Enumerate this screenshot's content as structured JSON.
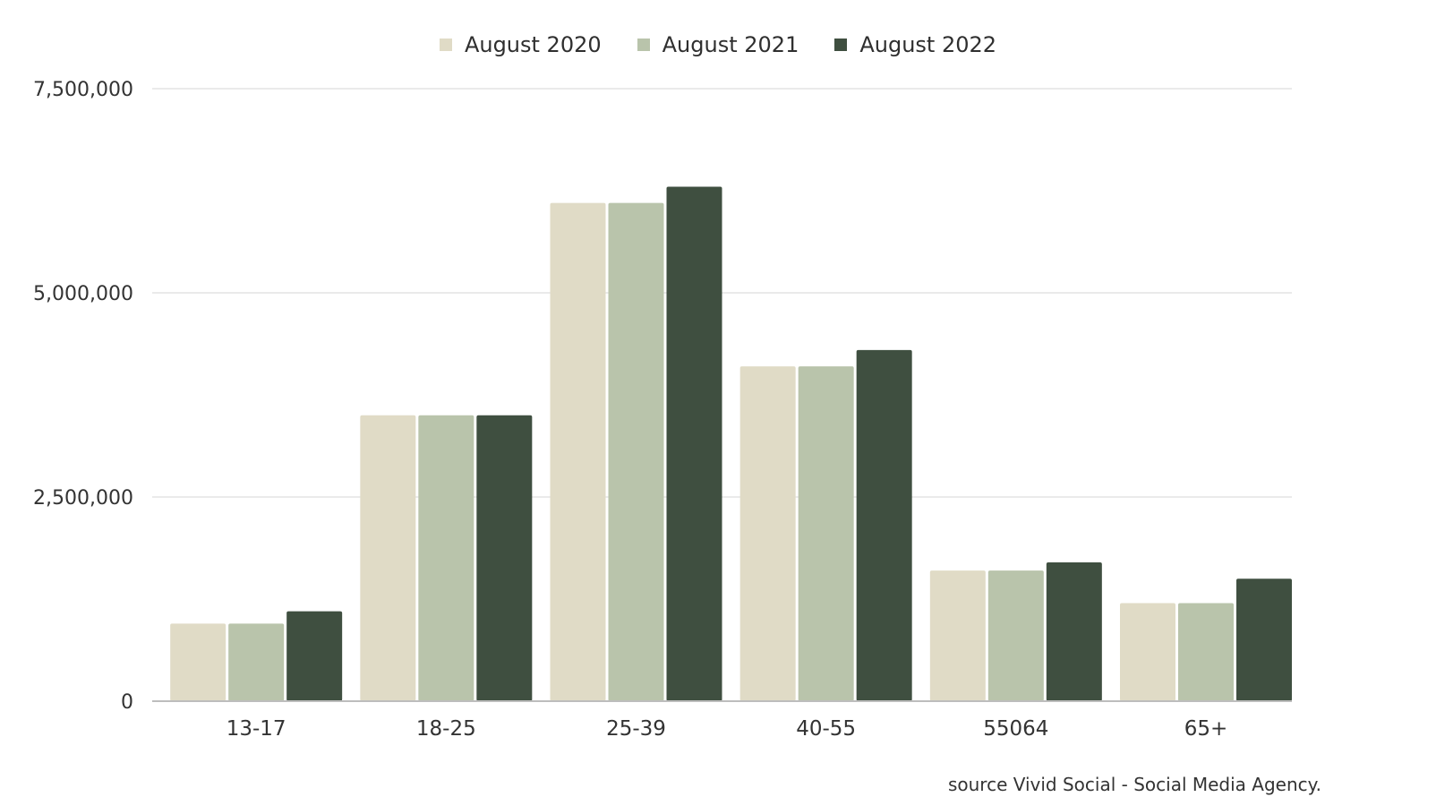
{
  "chart_data": {
    "type": "bar",
    "categories": [
      "13-17",
      "18-25",
      "25-39",
      "40-55",
      "55064",
      "65+"
    ],
    "series": [
      {
        "name": "August 2020",
        "color": "#e0dbc6",
        "values": [
          950000,
          3500000,
          6100000,
          4100000,
          1600000,
          1200000
        ]
      },
      {
        "name": "August 2021",
        "color": "#b9c4ab",
        "values": [
          950000,
          3500000,
          6100000,
          4100000,
          1600000,
          1200000
        ]
      },
      {
        "name": "August 2022",
        "color": "#3f4f40",
        "values": [
          1100000,
          3500000,
          6300000,
          4300000,
          1700000,
          1500000
        ]
      }
    ],
    "ylim": [
      0,
      7500000
    ],
    "yticks": [
      {
        "value": 0,
        "label": "0"
      },
      {
        "value": 2500000,
        "label": "2,500,000"
      },
      {
        "value": 5000000,
        "label": "5,000,000"
      },
      {
        "value": 7500000,
        "label": "7,500,000"
      }
    ],
    "grid": true,
    "legend_position": "top-center",
    "source": "source Vivid Social - Social Media Agency."
  }
}
